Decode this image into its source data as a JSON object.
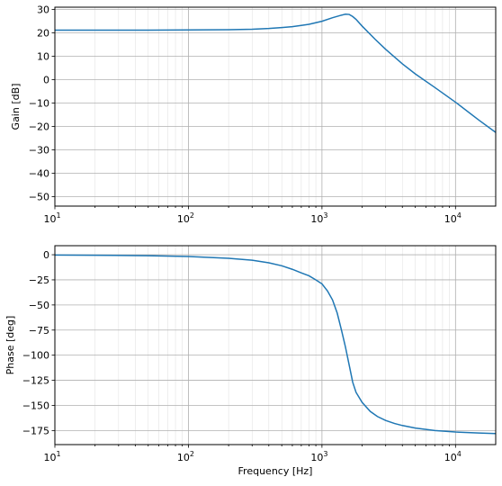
{
  "chart_data": [
    {
      "type": "line",
      "xscale": "log",
      "xlim": [
        10,
        20000
      ],
      "ylim": [
        -54,
        31
      ],
      "xlabel": "",
      "ylabel": "Gain [dB]",
      "grid": "major and minor",
      "x_ticks": [
        10,
        100,
        1000,
        10000
      ],
      "x_tick_labels": [
        {
          "base": "10",
          "exp": "1"
        },
        {
          "base": "10",
          "exp": "2"
        },
        {
          "base": "10",
          "exp": "3"
        },
        {
          "base": "10",
          "exp": "4"
        }
      ],
      "y_ticks": [
        30,
        20,
        10,
        0,
        -10,
        -20,
        -30,
        -40,
        -50
      ],
      "y_tick_labels": [
        "30",
        "20",
        "10",
        "0",
        "−10",
        "−20",
        "−30",
        "−40",
        "−50"
      ],
      "series": [
        {
          "color": "#1f77b4",
          "x": [
            10,
            20,
            50,
            100,
            200,
            300,
            400,
            500,
            600,
            700,
            800,
            1000,
            1200,
            1400,
            1500,
            1600,
            1700,
            1800,
            2000,
            2500,
            3000,
            4000,
            5000,
            7000,
            10000,
            15000,
            20000
          ],
          "y": [
            21.2,
            21.2,
            21.2,
            21.3,
            21.4,
            21.6,
            21.9,
            22.3,
            22.7,
            23.2,
            23.7,
            25.0,
            26.5,
            27.6,
            28.0,
            27.9,
            27.0,
            25.8,
            22.9,
            17.3,
            13.0,
            6.8,
            2.5,
            -3.3,
            -9.6,
            -17.3,
            -22.5
          ]
        }
      ]
    },
    {
      "type": "line",
      "xscale": "log",
      "xlim": [
        10,
        20000
      ],
      "ylim": [
        -189,
        9
      ],
      "xlabel": "Frequency [Hz]",
      "ylabel": "Phase [deg]",
      "grid": "major and minor",
      "x_ticks": [
        10,
        100,
        1000,
        10000
      ],
      "x_tick_labels": [
        {
          "base": "10",
          "exp": "1"
        },
        {
          "base": "10",
          "exp": "2"
        },
        {
          "base": "10",
          "exp": "3"
        },
        {
          "base": "10",
          "exp": "4"
        }
      ],
      "y_ticks": [
        0,
        -25,
        -50,
        -75,
        -100,
        -125,
        -150,
        -175
      ],
      "y_tick_labels": [
        "0",
        "−25",
        "−50",
        "−75",
        "−100",
        "−125",
        "−150",
        "−175"
      ],
      "series": [
        {
          "color": "#1f77b4",
          "x": [
            10,
            20,
            50,
            100,
            200,
            300,
            400,
            500,
            600,
            700,
            800,
            900,
            1000,
            1100,
            1200,
            1300,
            1400,
            1500,
            1600,
            1700,
            1800,
            2000,
            2300,
            2600,
            3000,
            3500,
            4000,
            5000,
            7000,
            10000,
            15000,
            20000
          ],
          "y": [
            -0.3,
            -0.5,
            -1.0,
            -1.8,
            -3.5,
            -5.5,
            -8.0,
            -11.0,
            -14.5,
            -18.0,
            -21.0,
            -25.0,
            -29.0,
            -36.0,
            -45.0,
            -58.0,
            -75.0,
            -92.0,
            -110.0,
            -127.0,
            -137.0,
            -147.0,
            -156.0,
            -161.0,
            -165.0,
            -168.0,
            -170.0,
            -172.5,
            -175.0,
            -176.5,
            -177.5,
            -178.0
          ]
        }
      ]
    }
  ]
}
